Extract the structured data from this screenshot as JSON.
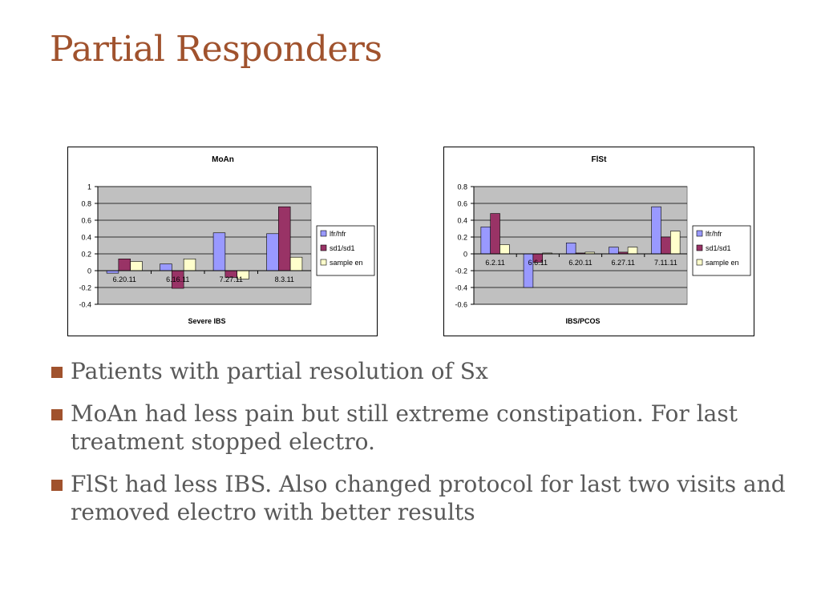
{
  "slide": {
    "title": "Partial Responders"
  },
  "bullets": [
    "Patients with partial resolution of Sx",
    "MoAn had less pain but still extreme constipation. For last treatment stopped electro.",
    "FlSt had less IBS. Also changed protocol for last two visits and removed electro with better results"
  ],
  "colors": {
    "title": "#a0522d",
    "bullet_marker": "#a0522d",
    "plot_area": "#c0c0c0",
    "lfr_hfr": "#9999ff",
    "sd1_sd1": "#993366",
    "sample_en": "#ffffcc"
  },
  "chart_data": [
    {
      "type": "bar",
      "title": "MoAn",
      "xlabel": "Severe IBS",
      "ylabel": "",
      "categories": [
        "6.20.11",
        "6.16.11",
        "7.27.11",
        "8.3.11"
      ],
      "series": [
        {
          "name": "lfr/hfr",
          "color": "#9999ff",
          "values": [
            -0.03,
            0.08,
            0.45,
            0.44
          ]
        },
        {
          "name": "sd1/sd1",
          "color": "#993366",
          "values": [
            0.14,
            -0.21,
            -0.08,
            0.76
          ]
        },
        {
          "name": "sample en",
          "color": "#ffffcc",
          "values": [
            0.11,
            0.14,
            -0.1,
            0.16
          ]
        }
      ],
      "ylim": [
        -0.4,
        1
      ],
      "yticks": [
        "1",
        "0.8",
        "0.6",
        "0.4",
        "0.2",
        "0",
        "-0.2",
        "-0.4"
      ],
      "grid": true,
      "legend_position": "right"
    },
    {
      "type": "bar",
      "title": "FlSt",
      "xlabel": "IBS/PCOS",
      "ylabel": "",
      "categories": [
        "6.2.11",
        "6.6.11",
        "6.20.11",
        "6.27.11",
        "7.11.11"
      ],
      "series": [
        {
          "name": "lfr/hfr",
          "color": "#9999ff",
          "values": [
            0.32,
            -0.4,
            0.13,
            0.08,
            0.56
          ]
        },
        {
          "name": "sd1/sd1",
          "color": "#993366",
          "values": [
            0.48,
            -0.1,
            0.01,
            0.02,
            0.2
          ]
        },
        {
          "name": "sample en",
          "color": "#ffffcc",
          "values": [
            0.11,
            0.01,
            0.02,
            0.08,
            0.27
          ]
        }
      ],
      "ylim": [
        -0.6,
        0.8
      ],
      "yticks": [
        "0.8",
        "0.6",
        "0.4",
        "0.2",
        "0",
        "-0.2",
        "-0.4",
        "-0.6"
      ],
      "grid": true,
      "legend_position": "right"
    }
  ]
}
